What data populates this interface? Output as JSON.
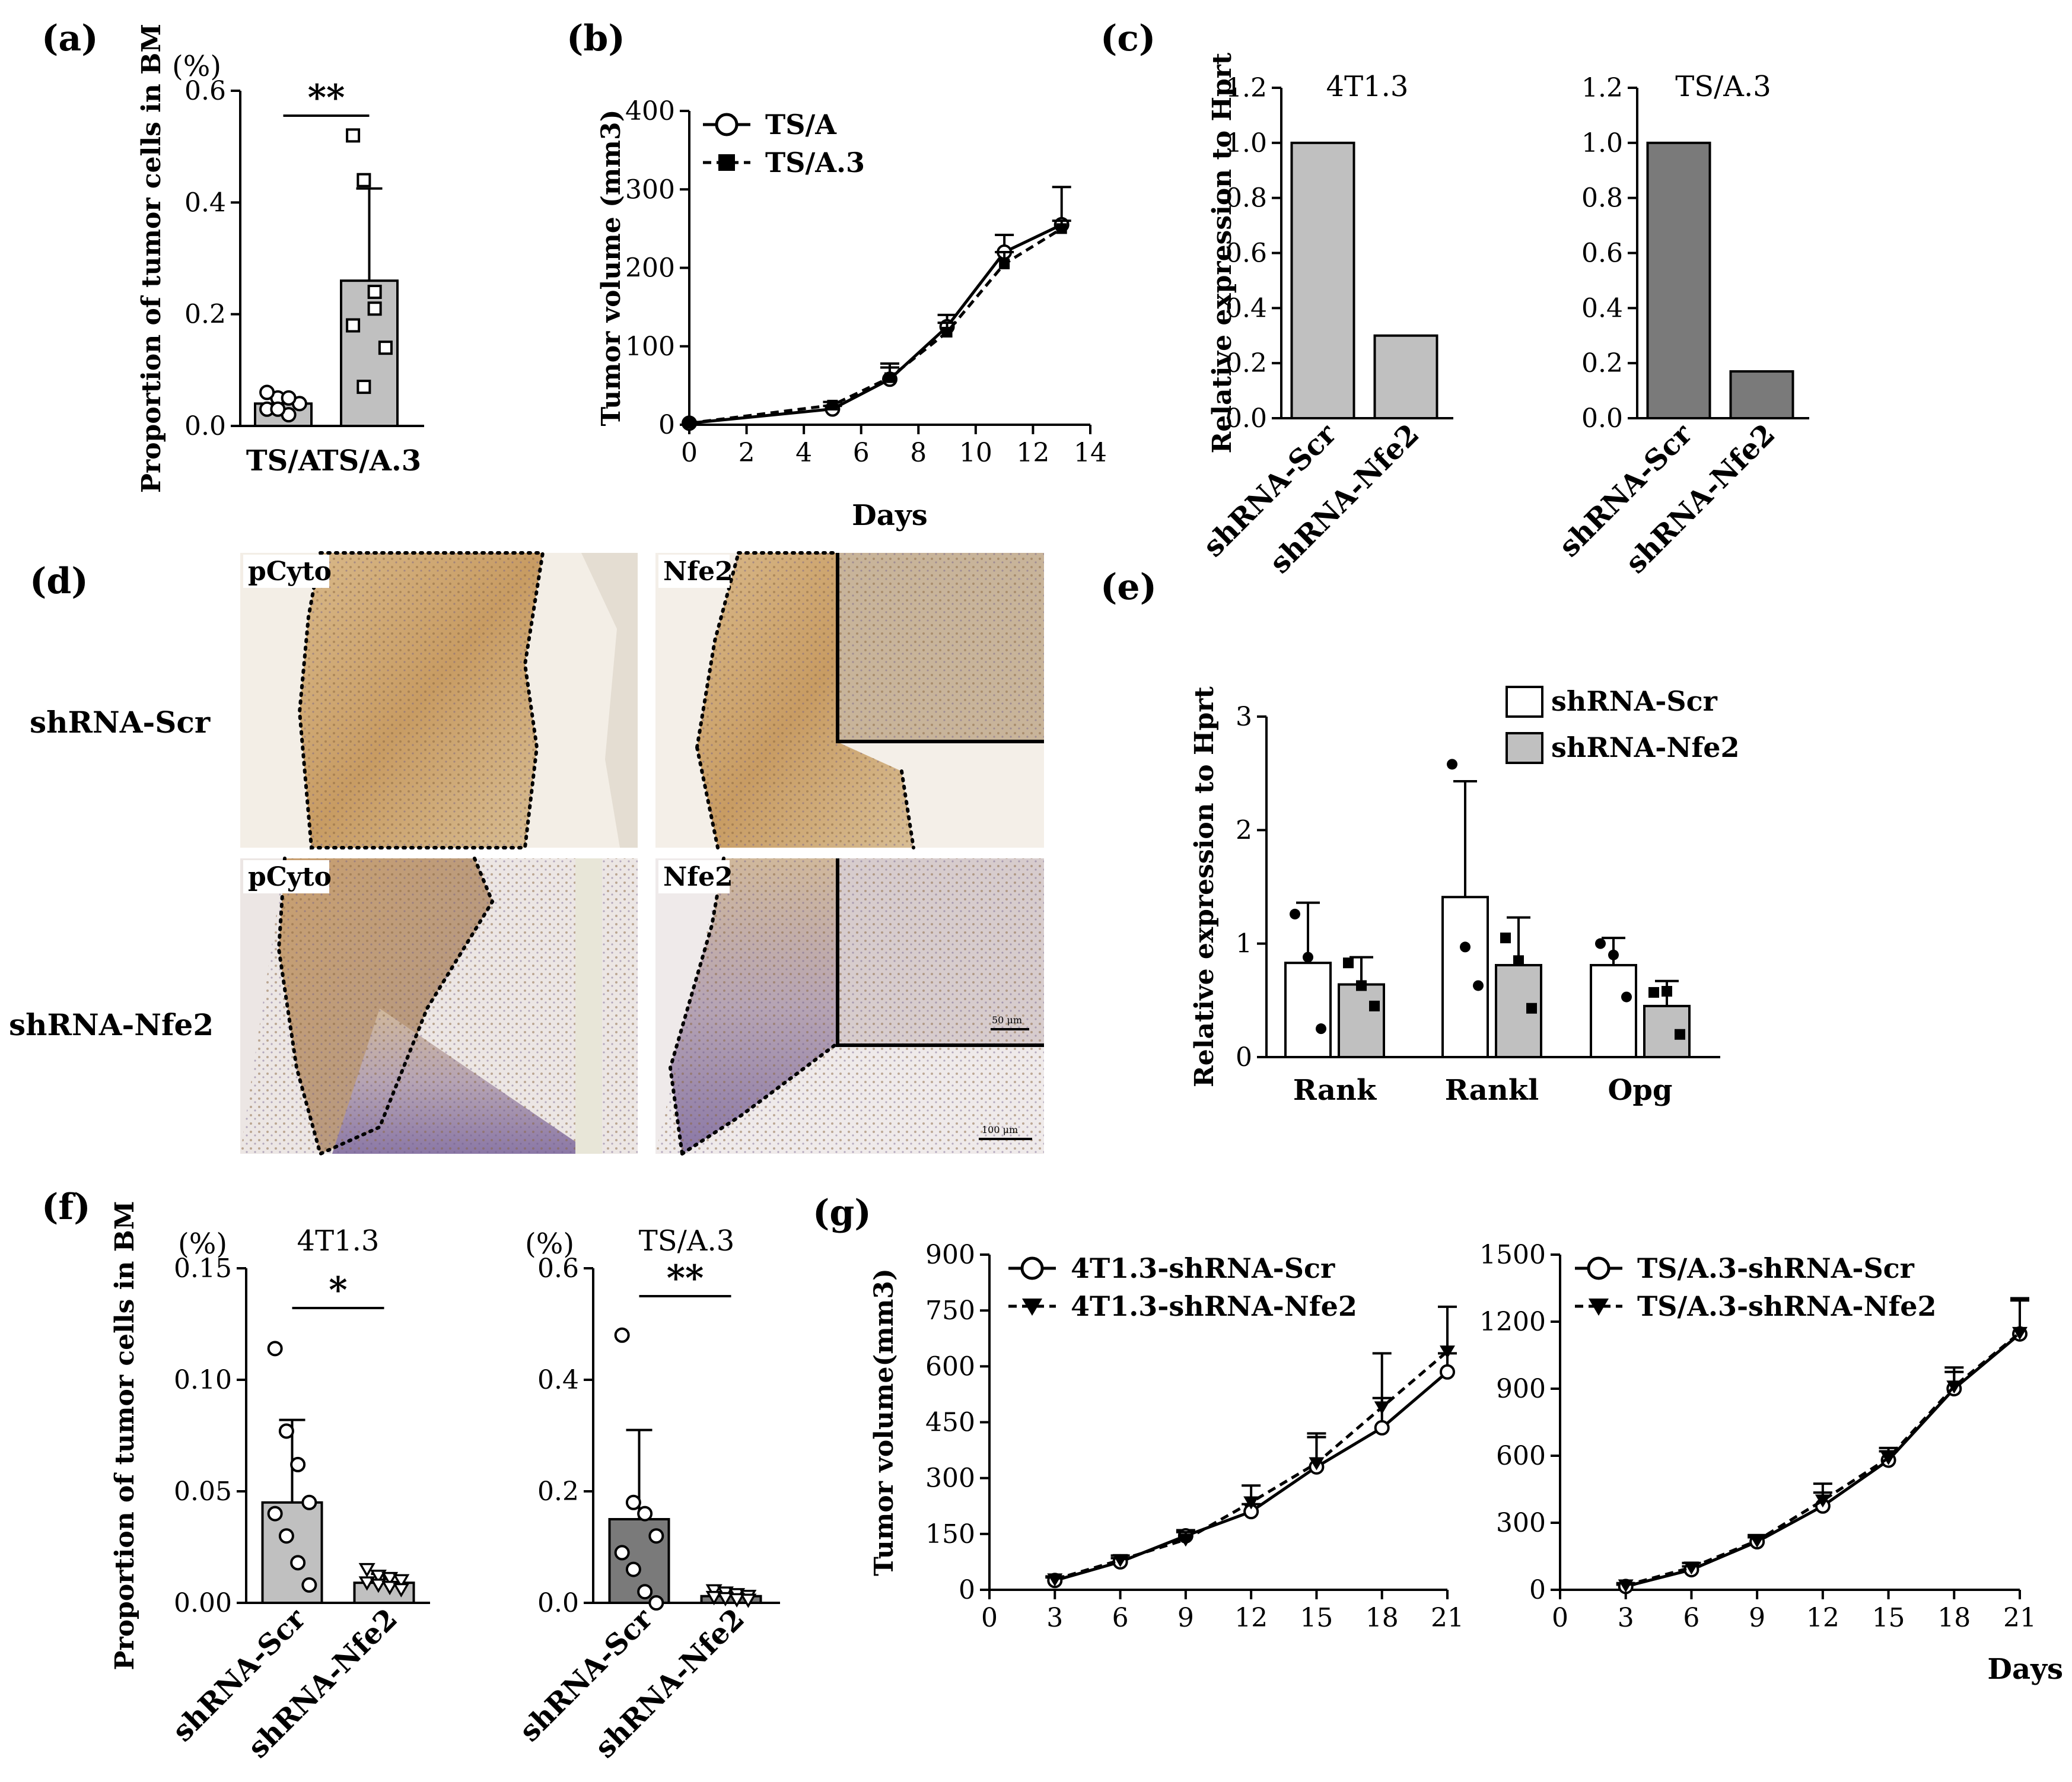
{
  "panel_labels": {
    "a": "(a)",
    "b": "(b)",
    "c": "(c)",
    "d": "(d)",
    "e": "(e)",
    "f": "(f)",
    "g": "(g)"
  },
  "colors": {
    "bar_light": "#c0c0c0",
    "bar_dark": "#7a7a7a",
    "bar_white": "#ffffff",
    "ink": "#000000"
  },
  "panel_d": {
    "row_labels": [
      "shRNA-Scr",
      "shRNA-Nfe2"
    ],
    "column_tags": [
      "pCyto",
      "Nfe2",
      "pCyto",
      "Nfe2"
    ],
    "scale_small": "50 μm",
    "scale_large": "100 μm"
  },
  "chart_data": [
    {
      "id": "a",
      "type": "bar",
      "unit": "(%)",
      "ylabel": "Proportion of tumor cells in BM",
      "categories": [
        "TS/A",
        "TS/A.3"
      ],
      "values": [
        0.04,
        0.26
      ],
      "errors": [
        0.01,
        0.165
      ],
      "points": [
        [
          0.03,
          0.05,
          0.02,
          0.04,
          0.06,
          0.03,
          0.05
        ],
        [
          0.52,
          0.44,
          0.21,
          0.14,
          0.18,
          0.07,
          0.24
        ]
      ],
      "ylim": [
        0,
        0.6
      ],
      "yticks": [
        "0.0",
        "0.2",
        "0.4",
        "0.6"
      ],
      "significance": "**"
    },
    {
      "id": "b",
      "type": "line",
      "ylabel": "Tumor volume (mm3)",
      "xlabel": "Days",
      "x": [
        0,
        5,
        7,
        9,
        11,
        13
      ],
      "xticks": [
        "0",
        "2",
        "4",
        "6",
        "8",
        "10",
        "12",
        "14"
      ],
      "yticks": [
        "0",
        "100",
        "200",
        "300",
        "400"
      ],
      "xlim": [
        0,
        14
      ],
      "ylim": [
        0,
        400
      ],
      "series": [
        {
          "name": "TS/A",
          "values": [
            2,
            20,
            58,
            125,
            220,
            255
          ],
          "errors": [
            0,
            4,
            15,
            15,
            22,
            48
          ]
        },
        {
          "name": "TS/A.3",
          "values": [
            2,
            25,
            60,
            118,
            205,
            250
          ],
          "errors": [
            0,
            4,
            18,
            12,
            15,
            10
          ]
        }
      ]
    },
    {
      "id": "c1",
      "type": "bar",
      "title": "4T1.3",
      "ylabel": "Relative expression to Hprt",
      "categories": [
        "shRNA-Scr",
        "shRNA-Nfe2"
      ],
      "values": [
        1.0,
        0.3
      ],
      "ylim": [
        0,
        1.2
      ],
      "yticks": [
        "0.0",
        "0.2",
        "0.4",
        "0.6",
        "0.8",
        "1.0",
        "1.2"
      ]
    },
    {
      "id": "c2",
      "type": "bar",
      "title": "TS/A.3",
      "categories": [
        "shRNA-Scr",
        "shRNA-Nfe2"
      ],
      "values": [
        1.0,
        0.17
      ],
      "ylim": [
        0,
        1.2
      ],
      "yticks": [
        "0.0",
        "0.2",
        "0.4",
        "0.6",
        "0.8",
        "1.0",
        "1.2"
      ]
    },
    {
      "id": "e",
      "type": "bar",
      "ylabel": "Relative expression to Hprt",
      "categories": [
        "Rank",
        "Rankl",
        "Opg"
      ],
      "yticks": [
        "0",
        "1",
        "2",
        "3"
      ],
      "ylim": [
        0,
        3
      ],
      "legend": "top-right",
      "series": [
        {
          "name": "shRNA-Scr",
          "values": [
            0.83,
            1.41,
            0.81
          ],
          "errors": [
            0.53,
            1.02,
            0.24
          ],
          "points": [
            [
              1.26,
              0.88,
              0.25
            ],
            [
              2.58,
              0.97,
              0.63
            ],
            [
              1.0,
              0.9,
              0.53
            ]
          ]
        },
        {
          "name": "shRNA-Nfe2",
          "values": [
            0.64,
            0.81,
            0.45
          ],
          "errors": [
            0.24,
            0.42,
            0.22
          ],
          "points": [
            [
              0.83,
              0.63,
              0.45
            ],
            [
              1.05,
              0.85,
              0.43
            ],
            [
              0.57,
              0.58,
              0.2
            ]
          ]
        }
      ]
    },
    {
      "id": "f1",
      "type": "bar",
      "title": "4T1.3",
      "unit": "(%)",
      "ylabel": "Proportion of tumor cells in BM",
      "categories": [
        "shRNA-Scr",
        "shRNA-Nfe2"
      ],
      "values": [
        0.045,
        0.009
      ],
      "errors": [
        0.037,
        0.004
      ],
      "points": [
        [
          0.114,
          0.077,
          0.062,
          0.045,
          0.04,
          0.03,
          0.018,
          0.008
        ],
        [
          0.015,
          0.012,
          0.011,
          0.01,
          0.009,
          0.008,
          0.007,
          0.006
        ]
      ],
      "ylim": [
        0,
        0.15
      ],
      "yticks": [
        "0.00",
        "0.05",
        "0.10",
        "0.15"
      ],
      "significance": "*"
    },
    {
      "id": "f2",
      "type": "bar",
      "title": "TS/A.3",
      "unit": "(%)",
      "categories": [
        "shRNA-Scr",
        "shRNA-Nfe2"
      ],
      "values": [
        0.15,
        0.012
      ],
      "errors": [
        0.16,
        0.005
      ],
      "points": [
        [
          0.48,
          0.18,
          0.16,
          0.12,
          0.09,
          0.06,
          0.02,
          0.0
        ],
        [
          0.022,
          0.018,
          0.015,
          0.012,
          0.01,
          0.008,
          0.006,
          0.005
        ]
      ],
      "ylim": [
        0,
        0.6
      ],
      "yticks": [
        "0.0",
        "0.2",
        "0.4",
        "0.6"
      ],
      "significance": "**"
    },
    {
      "id": "g1",
      "type": "line",
      "ylabel": "Tumor volume(mm3)",
      "x": [
        3,
        6,
        9,
        12,
        15,
        18,
        21
      ],
      "xticks": [
        "0",
        "3",
        "6",
        "9",
        "12",
        "15",
        "18",
        "21"
      ],
      "yticks": [
        "0",
        "150",
        "300",
        "450",
        "600",
        "750",
        "900"
      ],
      "xlim": [
        0,
        21
      ],
      "ylim": [
        0,
        900
      ],
      "series": [
        {
          "name": "4T1.3-shRNA-Scr",
          "values": [
            25,
            75,
            145,
            210,
            330,
            435,
            585
          ],
          "errors": [
            8,
            10,
            15,
            20,
            80,
            80,
            50
          ]
        },
        {
          "name": "4T1.3-shRNA-Nfe2",
          "values": [
            28,
            80,
            135,
            235,
            340,
            490,
            640
          ],
          "errors": [
            8,
            12,
            20,
            45,
            80,
            145,
            120
          ]
        }
      ]
    },
    {
      "id": "g2",
      "type": "line",
      "xlabel": "Days",
      "x": [
        3,
        6,
        9,
        12,
        15,
        18,
        21
      ],
      "xticks": [
        "0",
        "3",
        "6",
        "9",
        "12",
        "15",
        "18",
        "21"
      ],
      "yticks": [
        "0",
        "300",
        "600",
        "900",
        "1200",
        "1500"
      ],
      "xlim": [
        0,
        21
      ],
      "ylim": [
        0,
        1500
      ],
      "series": [
        {
          "name": "TS/A.3-shRNA-Scr",
          "values": [
            15,
            90,
            215,
            375,
            580,
            900,
            1145
          ],
          "errors": [
            8,
            15,
            20,
            60,
            40,
            75,
            150
          ]
        },
        {
          "name": "TS/A.3-shRNA-Nfe2",
          "values": [
            20,
            100,
            220,
            400,
            590,
            910,
            1150
          ],
          "errors": [
            10,
            20,
            25,
            75,
            45,
            85,
            155
          ]
        }
      ]
    }
  ]
}
